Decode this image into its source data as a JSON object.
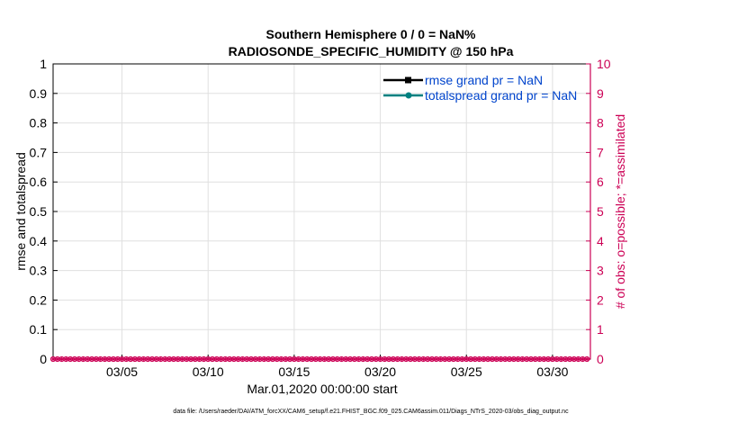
{
  "chart_data": {
    "type": "line",
    "title": "Southern Hemisphere 0 / 0 = NaN%",
    "subtitle": "RADIOSONDE_SPECIFIC_HUMIDITY @ 150 hPa",
    "xlabel": "Mar.01,2020 00:00:00 start",
    "ylabel": "rmse and totalspread",
    "y2label": "# of obs: o=possible; *=assimilated",
    "footer": "data file: /Users/raeder/DAI/ATM_forcXX/CAM6_setup/f.e21.FHIST_BGC.f09_025.CAM6assim.011/Diags_NTrS_2020-03/obs_diag_output.nc",
    "xlim": [
      1,
      32.2
    ],
    "ylim": [
      0,
      1
    ],
    "y2lim": [
      0,
      10
    ],
    "x_ticks": [
      5,
      10,
      15,
      20,
      25,
      30
    ],
    "x_tick_labels": [
      "03/05",
      "03/10",
      "03/15",
      "03/20",
      "03/25",
      "03/30"
    ],
    "y_ticks": [
      0,
      0.1,
      0.2,
      0.3,
      0.4,
      0.5,
      0.6,
      0.7,
      0.8,
      0.9,
      1
    ],
    "y_tick_labels": [
      "0",
      "0.1",
      "0.2",
      "0.3",
      "0.4",
      "0.5",
      "0.6",
      "0.7",
      "0.8",
      "0.9",
      "1"
    ],
    "y2_ticks": [
      0,
      1,
      2,
      3,
      4,
      5,
      6,
      7,
      8,
      9,
      10
    ],
    "y2_tick_labels": [
      "0",
      "1",
      "2",
      "3",
      "4",
      "5",
      "6",
      "7",
      "8",
      "9",
      "10"
    ],
    "grid": true,
    "legend_position": "top-right",
    "series": [
      {
        "name": "rmse grand pr = NaN",
        "color": "#000000",
        "marker": "square",
        "axis": "left",
        "values": []
      },
      {
        "name": "totalspread grand pr = NaN",
        "color": "#008080",
        "marker": "circle",
        "axis": "left",
        "values": []
      },
      {
        "name": "obs possible",
        "color": "#cc0055",
        "marker": "circle",
        "axis": "right",
        "x_start": 1,
        "x_step": 0.25,
        "count": 125,
        "values_all": 0
      },
      {
        "name": "obs assimilated",
        "color": "#cc0055",
        "marker": "star",
        "axis": "right",
        "x_start": 1,
        "x_step": 0.25,
        "count": 125,
        "values_all": 0
      }
    ],
    "colors": {
      "left_axis": "#000000",
      "right_axis": "#cc0055",
      "grid": "#e0e0e0",
      "legend_text": "#0044cc"
    }
  }
}
